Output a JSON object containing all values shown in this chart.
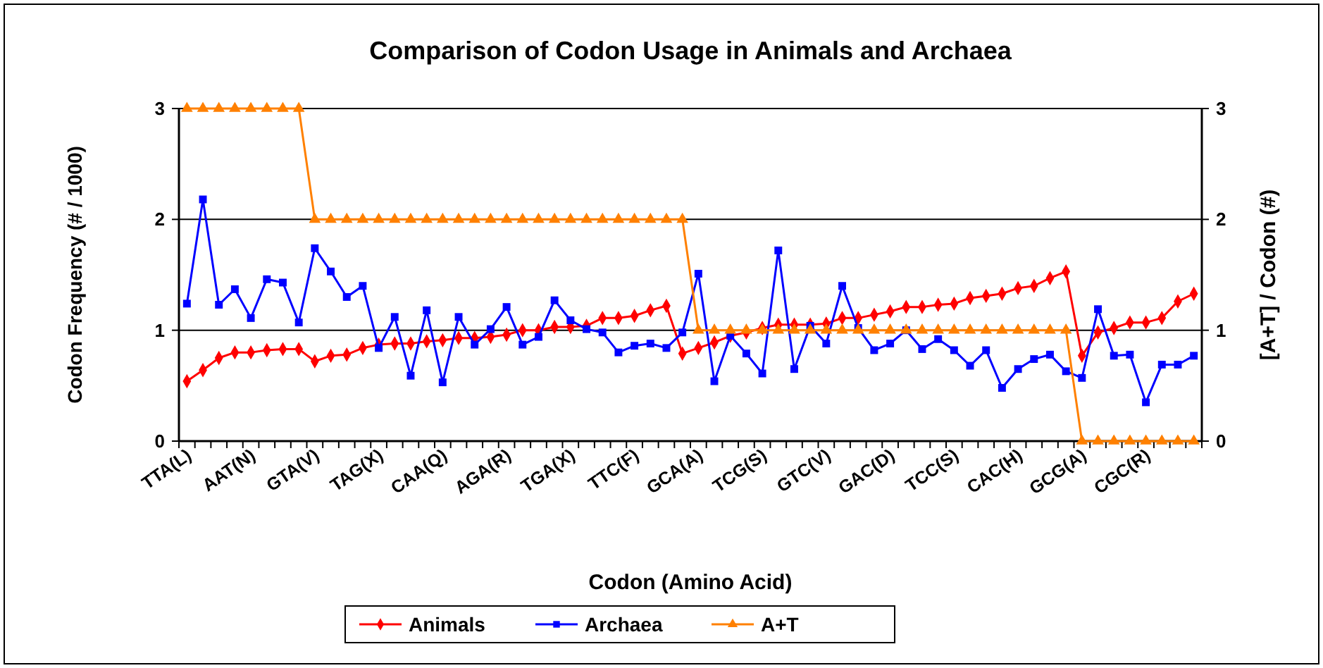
{
  "chart_data": {
    "type": "line",
    "title": "Comparison of Codon Usage  in Animals and Archaea",
    "xlabel": "Codon (Amino Acid)",
    "ylabel": "Codon Frequency (# / 1000)",
    "y2label": "[A+T] / Codon (#)",
    "categories": [
      "TTA(L)",
      null,
      null,
      null,
      "AAT(N)",
      null,
      null,
      null,
      "GTA(V)",
      null,
      null,
      null,
      "TAG(X)",
      null,
      null,
      null,
      "CAA(Q)",
      null,
      null,
      null,
      "AGA(R)",
      null,
      null,
      null,
      "TGA(X)",
      null,
      null,
      null,
      "TTC(F)",
      null,
      null,
      null,
      "GCA(A)",
      null,
      null,
      null,
      "TCG(S)",
      null,
      null,
      null,
      "GTC(V)",
      null,
      null,
      null,
      "GAC(D)",
      null,
      null,
      null,
      "TCC(S)",
      null,
      null,
      null,
      "CAC(H)",
      null,
      null,
      null,
      "GCG(A)",
      null,
      null,
      null,
      "CGC(R)",
      null,
      null,
      null
    ],
    "series": [
      {
        "name": "Animals",
        "color": "#ff0000",
        "marker": "diamond",
        "values": [
          0.54,
          0.64,
          0.75,
          0.8,
          0.8,
          0.82,
          0.83,
          0.83,
          0.72,
          0.77,
          0.78,
          0.84,
          0.87,
          0.88,
          0.88,
          0.9,
          0.91,
          0.93,
          0.93,
          0.94,
          0.96,
          1.0,
          1.0,
          1.03,
          1.03,
          1.04,
          1.11,
          1.11,
          1.13,
          1.18,
          1.22,
          0.79,
          0.84,
          0.89,
          0.95,
          0.98,
          1.02,
          1.05,
          1.05,
          1.05,
          1.06,
          1.11,
          1.11,
          1.14,
          1.17,
          1.21,
          1.21,
          1.23,
          1.24,
          1.29,
          1.31,
          1.33,
          1.38,
          1.4,
          1.47,
          1.53,
          0.77,
          0.98,
          1.02,
          1.07,
          1.07,
          1.11,
          1.26,
          1.33
        ]
      },
      {
        "name": "Archaea",
        "color": "#0000ff",
        "marker": "square",
        "values": [
          1.24,
          2.18,
          1.23,
          1.37,
          1.11,
          1.46,
          1.43,
          1.07,
          1.74,
          1.53,
          1.3,
          1.4,
          0.84,
          1.12,
          0.59,
          1.18,
          0.53,
          1.12,
          0.87,
          1.01,
          1.21,
          0.87,
          0.94,
          1.27,
          1.09,
          1.01,
          0.98,
          0.8,
          0.86,
          0.88,
          0.84,
          0.98,
          1.51,
          0.54,
          0.95,
          0.79,
          0.61,
          1.72,
          0.65,
          1.04,
          0.88,
          1.4,
          1.02,
          0.82,
          0.88,
          1.0,
          0.83,
          0.92,
          0.82,
          0.68,
          0.82,
          0.48,
          0.65,
          0.74,
          0.78,
          0.63,
          0.57,
          1.19,
          0.77,
          0.78,
          0.35,
          0.69,
          0.69,
          0.77
        ]
      },
      {
        "name": "A+T",
        "color": "#ff8000",
        "marker": "triangle",
        "axis": "y2",
        "values": [
          3,
          3,
          3,
          3,
          3,
          3,
          3,
          3,
          2,
          2,
          2,
          2,
          2,
          2,
          2,
          2,
          2,
          2,
          2,
          2,
          2,
          2,
          2,
          2,
          2,
          2,
          2,
          2,
          2,
          2,
          2,
          2,
          1,
          1,
          1,
          1,
          1,
          1,
          1,
          1,
          1,
          1,
          1,
          1,
          1,
          1,
          1,
          1,
          1,
          1,
          1,
          1,
          1,
          1,
          1,
          1,
          0,
          0,
          0,
          0,
          0,
          0,
          0,
          0
        ]
      }
    ],
    "ylim": [
      0,
      3
    ],
    "yticks": [
      0,
      1,
      2,
      3
    ],
    "y2lim": [
      0,
      3
    ],
    "y2ticks": [
      0,
      1,
      2,
      3
    ],
    "grid": "y",
    "legend": "bottom",
    "line_style": "solid"
  }
}
